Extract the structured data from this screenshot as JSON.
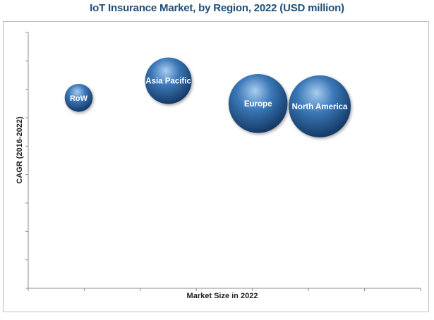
{
  "chart_data": {
    "type": "scatter",
    "title": "IoT Insurance Market, by Region, 2022 (USD million)",
    "xlabel": "Market Size in 2022",
    "ylabel": "CAGR (2016-2022)",
    "xlim": [
      0,
      7
    ],
    "ylim": [
      0,
      9
    ],
    "grid": false,
    "points": [
      {
        "label": "RoW",
        "x": 0.9,
        "y": 6.7,
        "size": 0.45
      },
      {
        "label": "Asia Pacific",
        "x": 2.5,
        "y": 7.3,
        "size": 0.75
      },
      {
        "label": "Europe",
        "x": 4.1,
        "y": 6.5,
        "size": 0.95
      },
      {
        "label": "North America",
        "x": 5.2,
        "y": 6.4,
        "size": 1.0
      }
    ]
  },
  "colors": {
    "bubble_light": "#a9cdef",
    "bubble_mid": "#3b78b8",
    "bubble_dark": "#153a66",
    "axis": "#8c8c8c",
    "title": "#1f4e79"
  }
}
